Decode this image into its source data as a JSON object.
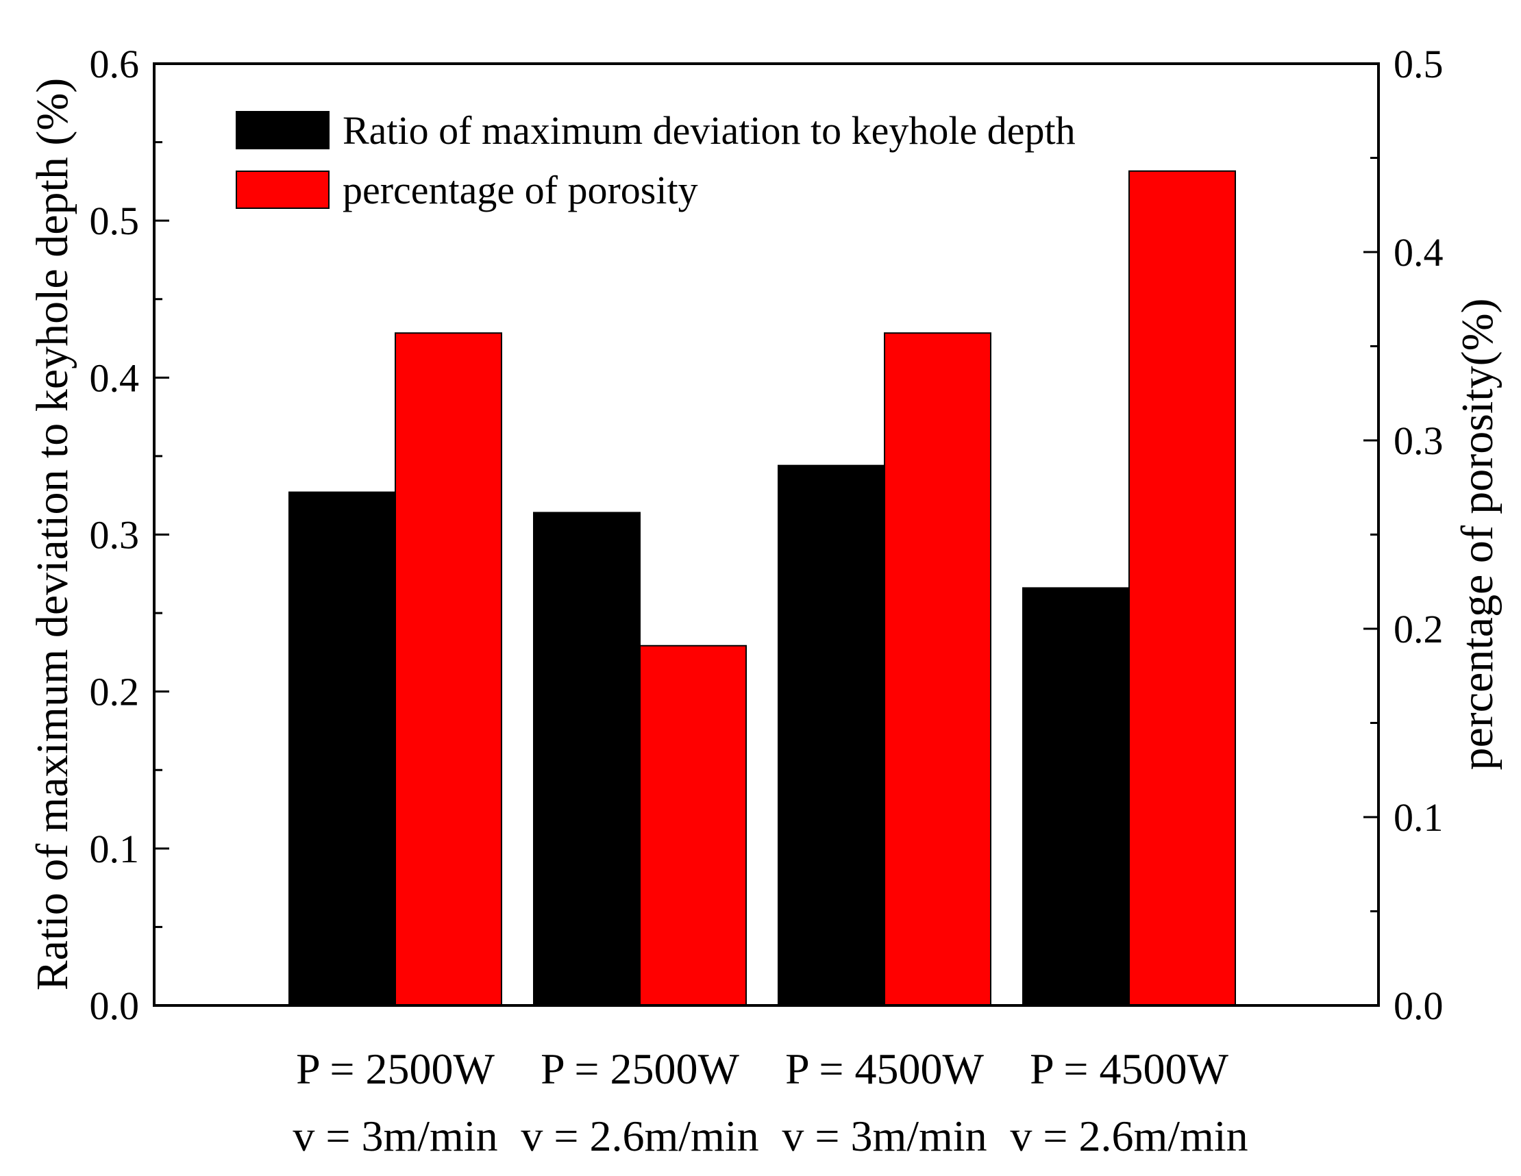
{
  "chart_data": {
    "type": "bar",
    "categories": [
      {
        "line1": "P = 2500W",
        "line2": "v = 3m/min"
      },
      {
        "line1": "P = 2500W",
        "line2": "v = 2.6m/min"
      },
      {
        "line1": "P = 4500W",
        "line2": "v = 3m/min"
      },
      {
        "line1": "P = 4500W",
        "line2": "v = 2.6m/min"
      }
    ],
    "series": [
      {
        "name": "Ratio of maximum deviation to keyhole depth",
        "axis": "left",
        "color": "#000000",
        "values": [
          0.327,
          0.314,
          0.344,
          0.266
        ]
      },
      {
        "name": "percentage of porosity",
        "axis": "right",
        "color": "#ff0000",
        "values": [
          0.357,
          0.191,
          0.357,
          0.443
        ]
      }
    ],
    "ylabel": "Ratio of maximum deviation to keyhole depth (%)",
    "ylabel_right": "percentage of porosity(%)",
    "ylim": [
      0,
      0.6
    ],
    "ylim_right": [
      0,
      0.5
    ],
    "yticks": [
      "0.0",
      "0.1",
      "0.2",
      "0.3",
      "0.4",
      "0.5",
      "0.6"
    ],
    "yticks_right": [
      "0.0",
      "0.1",
      "0.2",
      "0.3",
      "0.4",
      "0.5"
    ],
    "legend_position": "top-left",
    "grid": false
  }
}
